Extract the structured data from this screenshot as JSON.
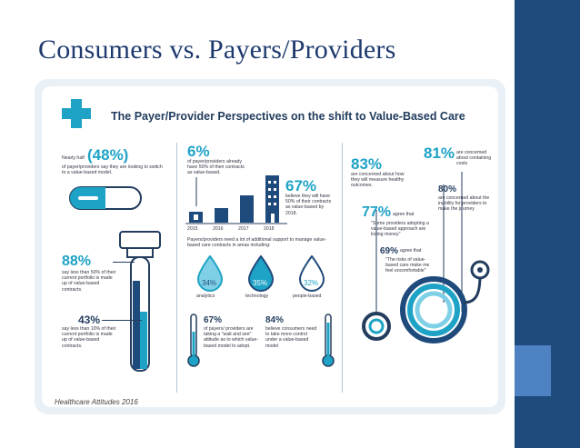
{
  "slide": {
    "title": "Consumers vs. Payers/Providers",
    "caption": "Healthcare Attitudes 2016",
    "colors": {
      "title": "#1e3a6e",
      "sidebar": "#1f4a7c",
      "accent": "#1ea3c6"
    }
  },
  "infographic": {
    "headline": "The Payer/Provider Perspectives on the shift to Value-Based Care",
    "left": {
      "stat48_prefix": "Nearly half",
      "stat48_value": "(48%)",
      "stat48_text": "of payer/providers say they are looking to switch to a value-based model.",
      "stat88_value": "88%",
      "stat88_text": "say less than 50% of their current portfolio is made up of value-based contracts.",
      "stat43_value": "43%",
      "stat43_text": "say less than 10% of their current portfolio is made up of value-based contracts."
    },
    "middle": {
      "stat6_value": "6%",
      "stat6_text": "of payer/providers already have 50% of their contracts as value-based.",
      "stat67_value": "67%",
      "stat67_text": "believe they will have 50% of their contracts as value-based by 2018.",
      "years": [
        "2015",
        "2016",
        "2017",
        "2018"
      ],
      "support_text": "Payers/providers need a lot of additional support to manage value-based care contracts in areas including:",
      "drops": [
        {
          "value": "34%",
          "label": "analytics"
        },
        {
          "value": "35%",
          "label": "technology"
        },
        {
          "value": "32%",
          "label": "people-based"
        }
      ],
      "stat67b_value": "67%",
      "stat67b_text": "of payers/ providers are taking a \"wait and see\" attitude as to which value-based model to adopt.",
      "stat84_value": "84%",
      "stat84_text": "believe consumers need to take more control under a value-based model"
    },
    "right": {
      "stat83_value": "83%",
      "stat83_text": "are concerned about how they will measure healthy outcomes.",
      "stat81_value": "81%",
      "stat81_text": "are concerned about containing costs",
      "stat80_value": "80%",
      "stat80_text": "are concerned about the inability for providers to make the journey",
      "stat77_value": "77%",
      "stat77_agree": "agree that",
      "stat77_text": "\"Some providers adopting a value-based approach are losing money\"",
      "stat69_value": "69%",
      "stat69_agree": "agree that",
      "stat69_text": "\"The risks of value-based care make me feel uncomfortable\""
    }
  }
}
